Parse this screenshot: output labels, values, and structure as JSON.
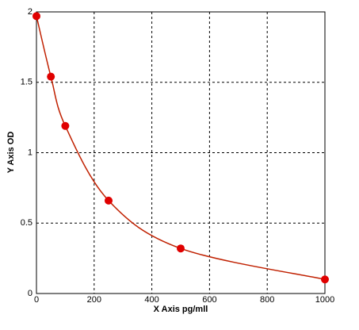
{
  "chart_data": {
    "type": "line",
    "x_label": "X Axis pg/mll",
    "y_label": "Y Axis OD",
    "x": [
      0,
      50,
      100,
      250,
      500,
      1000
    ],
    "values": [
      1.97,
      1.54,
      1.19,
      0.66,
      0.32,
      0.1
    ],
    "color": "#e00000",
    "line_color": "#c02000",
    "xlim": [
      0,
      1000
    ],
    "xticks": [
      0,
      200,
      400,
      600,
      800,
      1000
    ],
    "ylim": [
      0,
      2
    ],
    "yticks": [
      0,
      0.5,
      1,
      1.5,
      2
    ],
    "grid": true
  }
}
